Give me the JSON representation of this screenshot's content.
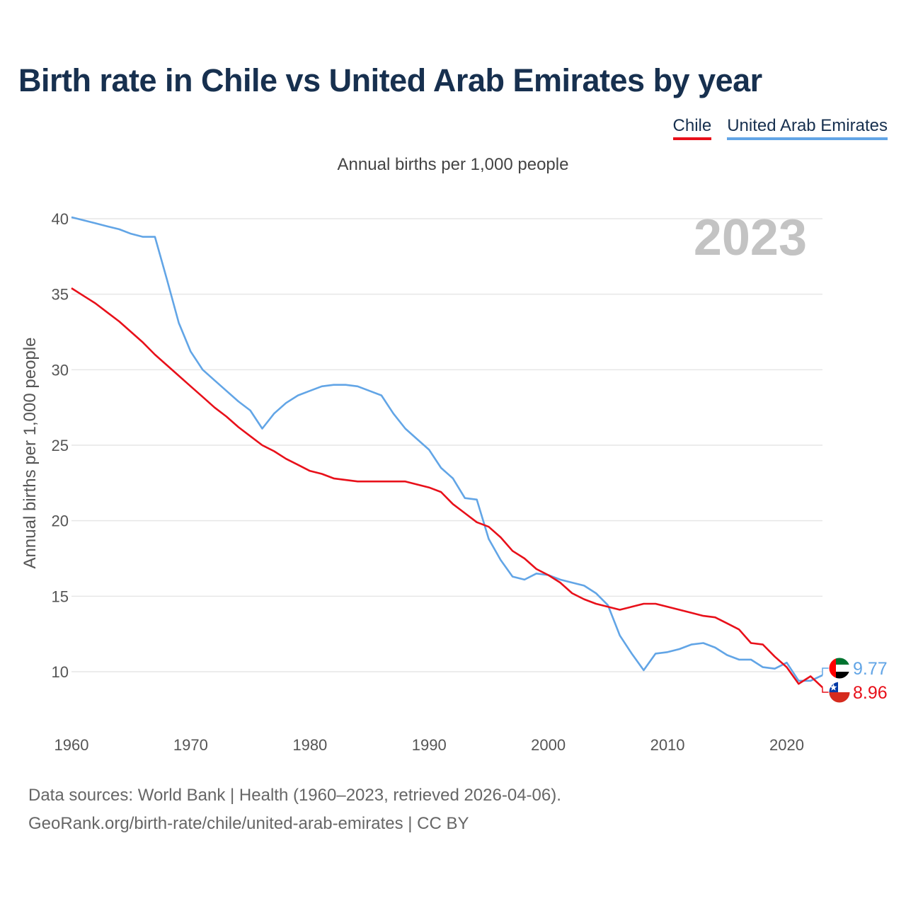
{
  "title": "Birth rate in Chile vs United Arab Emirates by year",
  "subtitle": "Annual births per 1,000 people",
  "year_label": "2023",
  "sources": [
    "Data sources: World Bank | Health (1960–2023, retrieved 2026-04-06).",
    "GeoRank.org/birth-rate/chile/united-arab-emirates | CC BY"
  ],
  "chart_data": {
    "type": "line",
    "title": "Birth rate in Chile vs United Arab Emirates by year",
    "subtitle": "Annual births per 1,000 people",
    "xlabel": "",
    "ylabel": "Annual births per 1,000 people",
    "xlim": [
      1960,
      2023
    ],
    "ylim": [
      7,
      41
    ],
    "x_ticks": [
      1960,
      1970,
      1980,
      1990,
      2000,
      2010,
      2020
    ],
    "y_ticks": [
      10,
      15,
      20,
      25,
      30,
      35,
      40
    ],
    "grid": true,
    "legend": "top-right",
    "x": [
      1960,
      1961,
      1962,
      1963,
      1964,
      1965,
      1966,
      1967,
      1968,
      1969,
      1970,
      1971,
      1972,
      1973,
      1974,
      1975,
      1976,
      1977,
      1978,
      1979,
      1980,
      1981,
      1982,
      1983,
      1984,
      1985,
      1986,
      1987,
      1988,
      1989,
      1990,
      1991,
      1992,
      1993,
      1994,
      1995,
      1996,
      1997,
      1998,
      1999,
      2000,
      2001,
      2002,
      2003,
      2004,
      2005,
      2006,
      2007,
      2008,
      2009,
      2010,
      2011,
      2012,
      2013,
      2014,
      2015,
      2016,
      2017,
      2018,
      2019,
      2020,
      2021,
      2022,
      2023
    ],
    "series": [
      {
        "name": "Chile",
        "color": "#e8101a",
        "flag": "chile-flag",
        "end_label": "8.96",
        "values": [
          35.4,
          34.9,
          34.4,
          33.8,
          33.2,
          32.5,
          31.8,
          31.0,
          30.3,
          29.6,
          28.9,
          28.2,
          27.5,
          26.9,
          26.2,
          25.6,
          25.0,
          24.6,
          24.1,
          23.7,
          23.3,
          23.1,
          22.8,
          22.7,
          22.6,
          22.6,
          22.6,
          22.6,
          22.6,
          22.4,
          22.2,
          21.9,
          21.1,
          20.5,
          19.9,
          19.6,
          18.9,
          18.0,
          17.5,
          16.8,
          16.4,
          15.9,
          15.2,
          14.8,
          14.5,
          14.3,
          14.1,
          14.3,
          14.5,
          14.5,
          14.3,
          14.1,
          13.9,
          13.7,
          13.6,
          13.2,
          12.8,
          11.9,
          11.8,
          11.0,
          10.3,
          9.2,
          9.7,
          8.96
        ]
      },
      {
        "name": "United Arab Emirates",
        "color": "#62a5e6",
        "flag": "united-arab-emirates-flag",
        "end_label": "9.77",
        "values": [
          40.1,
          39.9,
          39.7,
          39.5,
          39.3,
          39.0,
          38.8,
          38.8,
          36.0,
          33.1,
          31.2,
          30.0,
          29.3,
          28.6,
          27.9,
          27.3,
          26.1,
          27.1,
          27.8,
          28.3,
          28.6,
          28.9,
          29.0,
          29.0,
          28.9,
          28.6,
          28.3,
          27.1,
          26.1,
          25.4,
          24.7,
          23.5,
          22.8,
          21.5,
          21.4,
          18.8,
          17.4,
          16.3,
          16.1,
          16.5,
          16.4,
          16.1,
          15.9,
          15.7,
          15.2,
          14.4,
          12.4,
          11.2,
          10.1,
          11.2,
          11.3,
          11.5,
          11.8,
          11.9,
          11.6,
          11.1,
          10.8,
          10.8,
          10.3,
          10.2,
          10.6,
          9.4,
          9.4,
          9.77
        ]
      }
    ]
  }
}
